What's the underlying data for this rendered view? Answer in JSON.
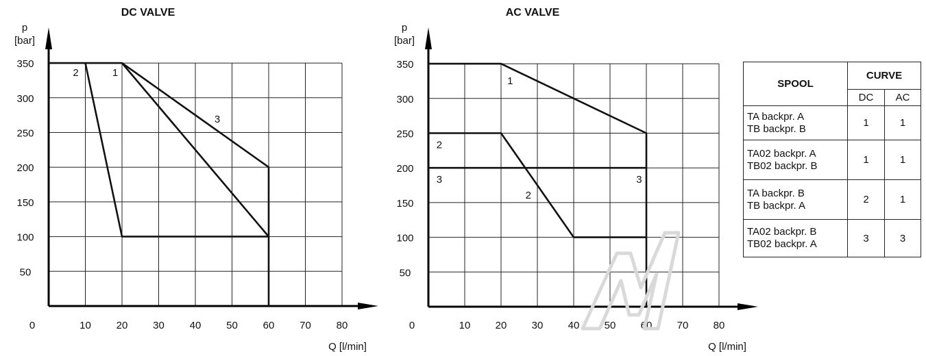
{
  "chart_data": [
    {
      "type": "line",
      "title": "DC VALVE",
      "ylabel": "p\n[bar]",
      "xlabel": "Q [l/min]",
      "xlim": [
        0,
        80
      ],
      "ylim": [
        0,
        350
      ],
      "x_ticks": [
        "0",
        "10",
        "20",
        "30",
        "40",
        "50",
        "60",
        "70",
        "80"
      ],
      "y_ticks": [
        "50",
        "100",
        "150",
        "200",
        "250",
        "300",
        "350"
      ],
      "grid": true,
      "series": [
        {
          "name": "1",
          "x": [
            0,
            20,
            60,
            60
          ],
          "y": [
            350,
            350,
            100,
            0
          ]
        },
        {
          "name": "2",
          "x": [
            10,
            20,
            60
          ],
          "y": [
            350,
            100,
            100
          ]
        },
        {
          "name": "3",
          "x": [
            20,
            60,
            60
          ],
          "y": [
            350,
            200,
            100
          ]
        }
      ]
    },
    {
      "type": "line",
      "title": "AC VALVE",
      "ylabel": "p\n[bar]",
      "xlabel": "Q [l/min]",
      "xlim": [
        0,
        80
      ],
      "ylim": [
        0,
        350
      ],
      "x_ticks": [
        "0",
        "10",
        "20",
        "30",
        "40",
        "50",
        "60",
        "70",
        "80"
      ],
      "y_ticks": [
        "50",
        "100",
        "150",
        "200",
        "250",
        "300",
        "350"
      ],
      "grid": true,
      "series": [
        {
          "name": "1",
          "x": [
            0,
            20,
            60,
            60
          ],
          "y": [
            350,
            350,
            250,
            200
          ]
        },
        {
          "name": "2",
          "x": [
            0,
            20,
            40,
            60
          ],
          "y": [
            250,
            250,
            100,
            100
          ]
        },
        {
          "name": "3",
          "x": [
            0,
            60,
            60
          ],
          "y": [
            200,
            200,
            0
          ]
        }
      ]
    }
  ],
  "table": {
    "header_spool": "SPOOL",
    "header_curve": "CURVE",
    "header_dc": "DC",
    "header_ac": "AC",
    "rows": [
      {
        "spool": [
          "TA backpr. A",
          "TB backpr. B"
        ],
        "dc": "1",
        "ac": "1"
      },
      {
        "spool": [
          "TA02 backpr. A",
          "TB02 backpr. B"
        ],
        "dc": "1",
        "ac": "1"
      },
      {
        "spool": [
          "TA backpr. B",
          "TB backpr. A"
        ],
        "dc": "2",
        "ac": "1"
      },
      {
        "spool": [
          "TA02 backpr. B",
          "TB02 backpr. A"
        ],
        "dc": "3",
        "ac": "3"
      }
    ]
  }
}
